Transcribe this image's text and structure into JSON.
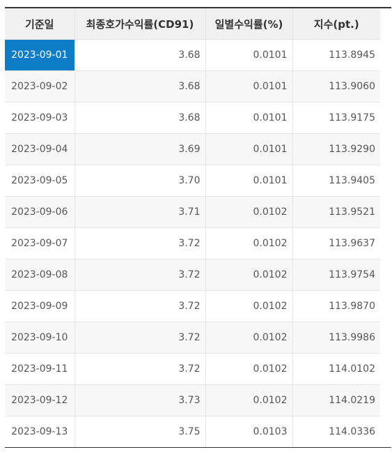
{
  "table": {
    "columns": [
      "기준일",
      "최종호가수익률(CD91)",
      "일별수익률(%)",
      "지수(pt.)"
    ],
    "selected_row": 0,
    "accent_color": "#0e7cc7",
    "rows": [
      {
        "date": "2023-09-01",
        "cd91": "3.68",
        "daily": "0.0101",
        "index": "113.8945"
      },
      {
        "date": "2023-09-02",
        "cd91": "3.68",
        "daily": "0.0101",
        "index": "113.9060"
      },
      {
        "date": "2023-09-03",
        "cd91": "3.68",
        "daily": "0.0101",
        "index": "113.9175"
      },
      {
        "date": "2023-09-04",
        "cd91": "3.69",
        "daily": "0.0101",
        "index": "113.9290"
      },
      {
        "date": "2023-09-05",
        "cd91": "3.70",
        "daily": "0.0101",
        "index": "113.9405"
      },
      {
        "date": "2023-09-06",
        "cd91": "3.71",
        "daily": "0.0102",
        "index": "113.9521"
      },
      {
        "date": "2023-09-07",
        "cd91": "3.72",
        "daily": "0.0102",
        "index": "113.9637"
      },
      {
        "date": "2023-09-08",
        "cd91": "3.72",
        "daily": "0.0102",
        "index": "113.9754"
      },
      {
        "date": "2023-09-09",
        "cd91": "3.72",
        "daily": "0.0102",
        "index": "113.9870"
      },
      {
        "date": "2023-09-10",
        "cd91": "3.72",
        "daily": "0.0102",
        "index": "113.9986"
      },
      {
        "date": "2023-09-11",
        "cd91": "3.72",
        "daily": "0.0102",
        "index": "114.0102"
      },
      {
        "date": "2023-09-12",
        "cd91": "3.73",
        "daily": "0.0102",
        "index": "114.0219"
      },
      {
        "date": "2023-09-13",
        "cd91": "3.75",
        "daily": "0.0103",
        "index": "114.0336"
      }
    ]
  }
}
